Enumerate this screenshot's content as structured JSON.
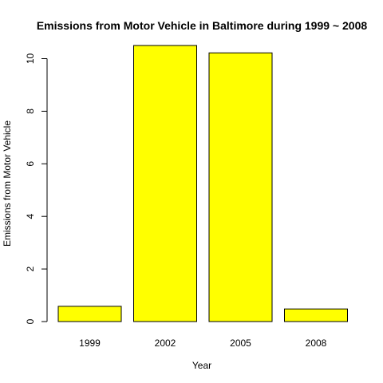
{
  "chart_data": {
    "type": "bar",
    "title": "Emissions from Motor Vehicle in Baltimore during 1999 ~ 2008",
    "xlabel": "Year",
    "ylabel": "Emissions from Motor Vehicle",
    "categories": [
      "1999",
      "2002",
      "2005",
      "2008"
    ],
    "values": [
      0.58,
      10.5,
      10.22,
      0.48
    ],
    "ylim": [
      0,
      10.5
    ],
    "yticks": [
      0,
      2,
      4,
      6,
      8,
      10
    ],
    "bar_color": "#ffff00",
    "bar_stroke": "#000000",
    "grid": false
  }
}
